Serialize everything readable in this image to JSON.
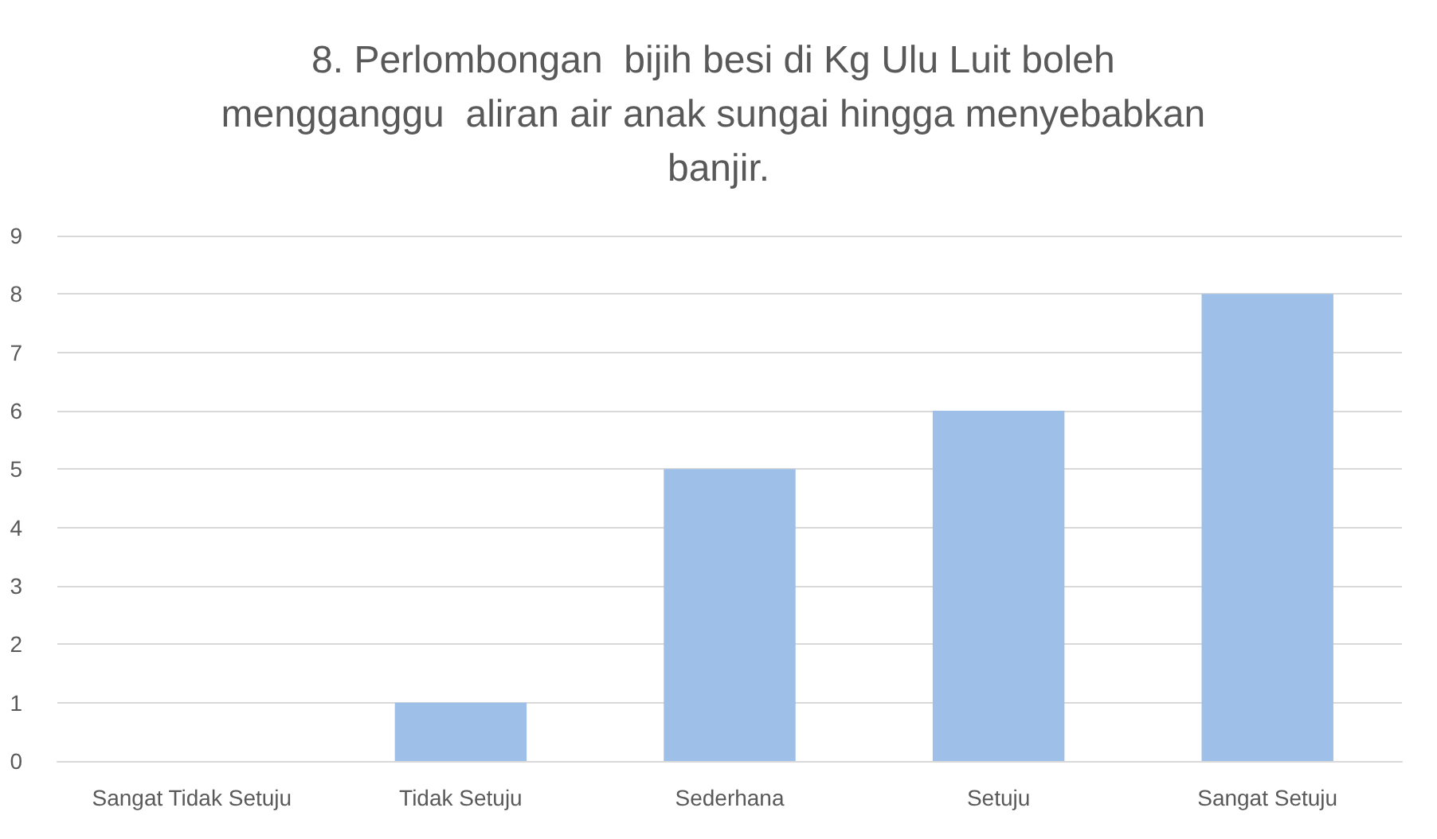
{
  "chart_data": {
    "type": "bar",
    "title": "8. Perlombongan  bijih besi di Kg Ulu Luit boleh mengganggu  aliran air anak sungai hingga menyebabkan banjir.",
    "categories": [
      "Sangat Tidak Setuju",
      "Tidak Setuju",
      "Sederhana",
      "Setuju",
      "Sangat Setuju"
    ],
    "values": [
      0,
      1,
      5,
      6,
      8
    ],
    "color": "#9dbfe8",
    "ylim": [
      0,
      9
    ],
    "yticks": [
      0,
      1,
      2,
      3,
      4,
      5,
      6,
      7,
      8,
      9
    ],
    "grid": "y"
  }
}
